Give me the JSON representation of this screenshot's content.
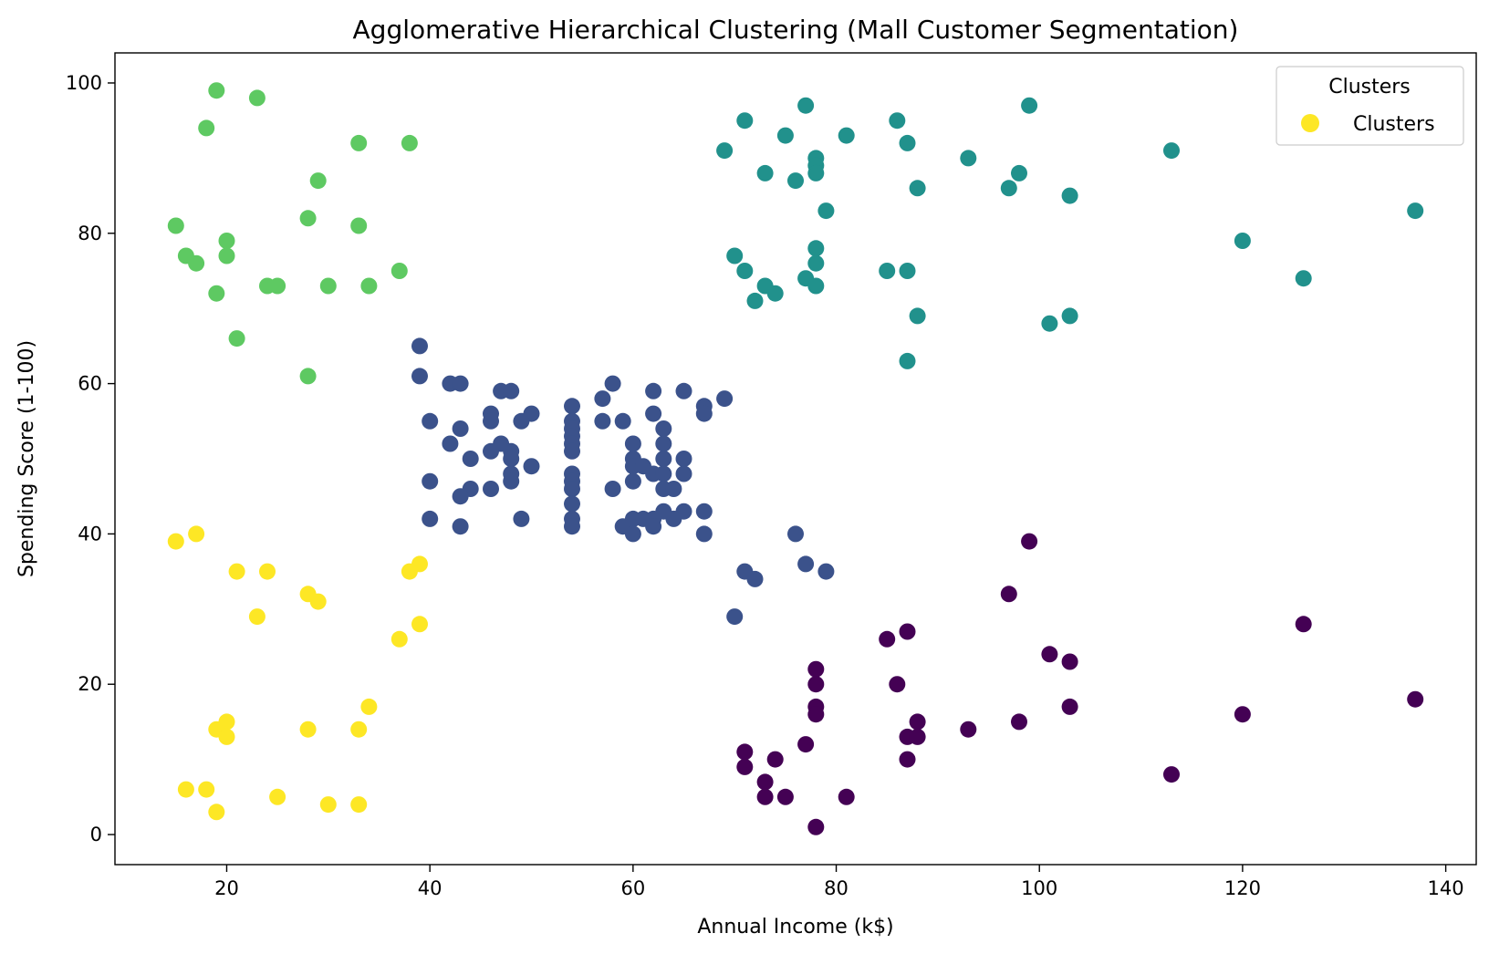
{
  "chart_data": {
    "type": "scatter",
    "title": "Agglomerative Hierarchical Clustering (Mall Customer Segmentation)",
    "xlabel": "Annual Income (k$)",
    "ylabel": "Spending Score (1-100)",
    "xlim": [
      9,
      143
    ],
    "ylim": [
      -4,
      104
    ],
    "xticks": [
      20,
      40,
      60,
      80,
      100,
      120,
      140
    ],
    "yticks": [
      0,
      20,
      40,
      60,
      80,
      100
    ],
    "grid": false,
    "legend": {
      "title": "Clusters",
      "entries": [
        "Clusters"
      ],
      "color": "#fde725",
      "placement": "top-right"
    },
    "series": [
      {
        "color": "#5ec962",
        "points": [
          [
            19,
            99
          ],
          [
            23,
            98
          ],
          [
            18,
            94
          ],
          [
            33,
            92
          ],
          [
            38,
            92
          ],
          [
            29,
            87
          ],
          [
            15,
            81
          ],
          [
            28,
            82
          ],
          [
            33,
            81
          ],
          [
            20,
            79
          ],
          [
            16,
            77
          ],
          [
            20,
            77
          ],
          [
            17,
            76
          ],
          [
            37,
            75
          ],
          [
            24,
            73
          ],
          [
            25,
            73
          ],
          [
            30,
            73
          ],
          [
            34,
            73
          ],
          [
            19,
            72
          ],
          [
            21,
            66
          ],
          [
            28,
            61
          ]
        ]
      },
      {
        "color": "#21918c",
        "points": [
          [
            77,
            97
          ],
          [
            99,
            97
          ],
          [
            71,
            95
          ],
          [
            86,
            95
          ],
          [
            75,
            93
          ],
          [
            81,
            93
          ],
          [
            69,
            91
          ],
          [
            87,
            92
          ],
          [
            113,
            91
          ],
          [
            78,
            90
          ],
          [
            93,
            90
          ],
          [
            78,
            89
          ],
          [
            73,
            88
          ],
          [
            78,
            88
          ],
          [
            98,
            88
          ],
          [
            76,
            87
          ],
          [
            88,
            86
          ],
          [
            97,
            86
          ],
          [
            103,
            85
          ],
          [
            79,
            83
          ],
          [
            137,
            83
          ],
          [
            120,
            79
          ],
          [
            78,
            78
          ],
          [
            70,
            77
          ],
          [
            78,
            76
          ],
          [
            71,
            75
          ],
          [
            85,
            75
          ],
          [
            87,
            75
          ],
          [
            77,
            74
          ],
          [
            126,
            74
          ],
          [
            73,
            73
          ],
          [
            78,
            73
          ],
          [
            74,
            72
          ],
          [
            72,
            71
          ],
          [
            88,
            69
          ],
          [
            103,
            69
          ],
          [
            101,
            68
          ],
          [
            87,
            63
          ]
        ]
      },
      {
        "color": "#3b528b",
        "points": [
          [
            39,
            65
          ],
          [
            39,
            61
          ],
          [
            42,
            60
          ],
          [
            43,
            60
          ],
          [
            58,
            60
          ],
          [
            47,
            59
          ],
          [
            48,
            59
          ],
          [
            62,
            59
          ],
          [
            65,
            59
          ],
          [
            57,
            58
          ],
          [
            69,
            58
          ],
          [
            54,
            57
          ],
          [
            67,
            57
          ],
          [
            46,
            56
          ],
          [
            50,
            56
          ],
          [
            62,
            56
          ],
          [
            67,
            56
          ],
          [
            40,
            55
          ],
          [
            46,
            55
          ],
          [
            49,
            55
          ],
          [
            54,
            55
          ],
          [
            57,
            55
          ],
          [
            59,
            55
          ],
          [
            54,
            54
          ],
          [
            43,
            54
          ],
          [
            63,
            54
          ],
          [
            54,
            53
          ],
          [
            54,
            52
          ],
          [
            42,
            52
          ],
          [
            47,
            52
          ],
          [
            60,
            52
          ],
          [
            63,
            52
          ],
          [
            48,
            51
          ],
          [
            46,
            51
          ],
          [
            54,
            51
          ],
          [
            44,
            50
          ],
          [
            48,
            50
          ],
          [
            60,
            50
          ],
          [
            63,
            50
          ],
          [
            65,
            50
          ],
          [
            50,
            49
          ],
          [
            60,
            49
          ],
          [
            61,
            49
          ],
          [
            62,
            48
          ],
          [
            63,
            48
          ],
          [
            48,
            48
          ],
          [
            54,
            48
          ],
          [
            65,
            48
          ],
          [
            40,
            47
          ],
          [
            48,
            47
          ],
          [
            54,
            47
          ],
          [
            60,
            47
          ],
          [
            44,
            46
          ],
          [
            46,
            46
          ],
          [
            54,
            46
          ],
          [
            58,
            46
          ],
          [
            63,
            46
          ],
          [
            64,
            46
          ],
          [
            43,
            45
          ],
          [
            54,
            44
          ],
          [
            65,
            43
          ],
          [
            67,
            43
          ],
          [
            63,
            43
          ],
          [
            40,
            42
          ],
          [
            49,
            42
          ],
          [
            54,
            42
          ],
          [
            60,
            42
          ],
          [
            61,
            42
          ],
          [
            62,
            42
          ],
          [
            64,
            42
          ],
          [
            43,
            41
          ],
          [
            54,
            41
          ],
          [
            59,
            41
          ],
          [
            62,
            41
          ],
          [
            60,
            40
          ],
          [
            67,
            40
          ],
          [
            76,
            40
          ],
          [
            77,
            36
          ],
          [
            71,
            35
          ],
          [
            79,
            35
          ],
          [
            72,
            34
          ],
          [
            70,
            29
          ]
        ]
      },
      {
        "color": "#fde725",
        "points": [
          [
            15,
            39
          ],
          [
            17,
            40
          ],
          [
            39,
            36
          ],
          [
            21,
            35
          ],
          [
            24,
            35
          ],
          [
            38,
            35
          ],
          [
            28,
            32
          ],
          [
            29,
            31
          ],
          [
            23,
            29
          ],
          [
            39,
            28
          ],
          [
            37,
            26
          ],
          [
            34,
            17
          ],
          [
            20,
            15
          ],
          [
            19,
            14
          ],
          [
            28,
            14
          ],
          [
            33,
            14
          ],
          [
            20,
            13
          ],
          [
            16,
            6
          ],
          [
            18,
            6
          ],
          [
            25,
            5
          ],
          [
            30,
            4
          ],
          [
            33,
            4
          ],
          [
            19,
            3
          ]
        ]
      },
      {
        "color": "#440154",
        "points": [
          [
            99,
            39
          ],
          [
            97,
            32
          ],
          [
            126,
            28
          ],
          [
            87,
            27
          ],
          [
            85,
            26
          ],
          [
            101,
            24
          ],
          [
            103,
            23
          ],
          [
            78,
            22
          ],
          [
            78,
            20
          ],
          [
            86,
            20
          ],
          [
            137,
            18
          ],
          [
            78,
            17
          ],
          [
            103,
            17
          ],
          [
            78,
            16
          ],
          [
            120,
            16
          ],
          [
            88,
            15
          ],
          [
            98,
            15
          ],
          [
            93,
            14
          ],
          [
            87,
            13
          ],
          [
            88,
            13
          ],
          [
            77,
            12
          ],
          [
            71,
            11
          ],
          [
            74,
            10
          ],
          [
            87,
            10
          ],
          [
            71,
            9
          ],
          [
            113,
            8
          ],
          [
            73,
            7
          ],
          [
            73,
            5
          ],
          [
            75,
            5
          ],
          [
            81,
            5
          ],
          [
            78,
            1
          ]
        ]
      }
    ]
  }
}
